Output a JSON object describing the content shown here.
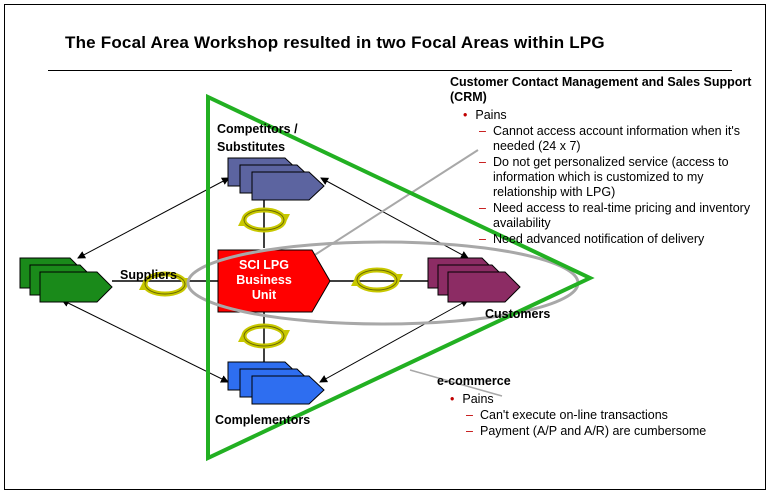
{
  "title": "The Focal Area Workshop resulted in two Focal Areas within LPG",
  "diagram": {
    "competitors_label": "Competitors / Substitutes",
    "suppliers_label": "Suppliers",
    "business_unit_label": "SCI LPG Business Unit",
    "customers_label": "Customers",
    "complementors_label": "Complementors"
  },
  "crm_panel": {
    "title": "Customer Contact Management and Sales Support (CRM)",
    "pains_label": "Pains",
    "items": [
      "Cannot access account information when it's needed (24 x 7)",
      "Do not get personalized service (access to information which is customized to my relationship with LPG)",
      "Need access to real-time pricing and inventory availability",
      "Need advanced notification of delivery"
    ]
  },
  "ecommerce_panel": {
    "title": "e-commerce",
    "pains_label": "Pains",
    "items": [
      "Can't execute on-line transactions",
      "Payment (A/P and A/R) are cumbersome"
    ]
  },
  "colors": {
    "competitors": "#5c64a0",
    "suppliers": "#1a8a1a",
    "business_unit": "#ff0000",
    "customers": "#8c2c64",
    "complementors": "#2e6ef0",
    "focal_triangle": "#22b022",
    "focal_ellipse": "#a8a8a8",
    "bullet": "#c00000"
  }
}
